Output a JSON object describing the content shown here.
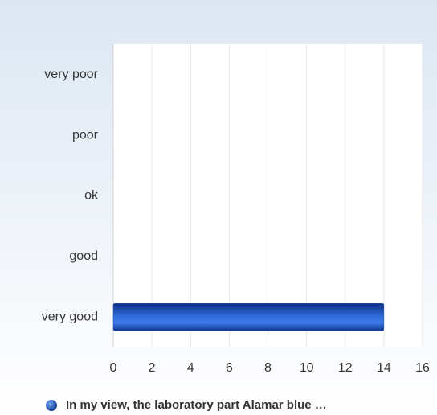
{
  "chart_data": {
    "type": "bar",
    "orientation": "horizontal",
    "categories": [
      "very poor",
      "poor",
      "ok",
      "good",
      "very good"
    ],
    "series": [
      {
        "name": "In my view, the laboratory part Alamar blue …",
        "color": "#1f4fb0",
        "values": [
          0,
          0,
          0,
          0,
          14
        ]
      }
    ],
    "xlim": [
      0,
      16
    ],
    "xticks": [
      0,
      2,
      4,
      6,
      8,
      10,
      12,
      14,
      16
    ],
    "grid": true,
    "legend": "bottom"
  }
}
